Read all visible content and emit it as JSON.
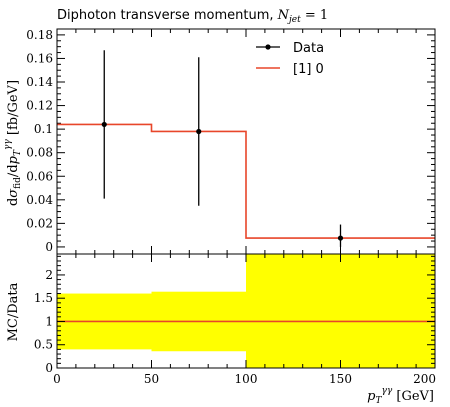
{
  "chart_data": [
    {
      "type": "line",
      "panel": "main",
      "title": "Diphoton transverse momentum, N_jet = 1",
      "title_text": "Diphoton transverse momentum, ",
      "title_var": "N",
      "title_sub": "jet",
      "title_eq": " = 1",
      "ylabel": "dσ_fid/dp_T^γγ [fb/GeV]",
      "ylabel_parts": {
        "d1": "d",
        "sigma": "σ",
        "fid": "fid",
        "slash": "/",
        "d2": "d",
        "p": "p",
        "T": "T",
        "gg": "γγ",
        "unit": " [fb/GeV]"
      },
      "xlim": [
        0,
        200
      ],
      "ylim": [
        -0.006,
        0.185
      ],
      "yticks": [
        0,
        0.02,
        0.04,
        0.06,
        0.08,
        0.1,
        0.12,
        0.14,
        0.16,
        0.18
      ],
      "ytick_labels": [
        "0",
        "0.02",
        "0.04",
        "0.06",
        "0.08",
        "0.1",
        "0.12",
        "0.14",
        "0.16",
        "0.18"
      ],
      "series": [
        {
          "name": "Data",
          "kind": "points",
          "color": "#000000",
          "points": [
            {
              "x": 25,
              "y": 0.104,
              "ylow": 0.041,
              "yhigh": 0.167
            },
            {
              "x": 75,
              "y": 0.098,
              "ylow": 0.035,
              "yhigh": 0.161
            },
            {
              "x": 150,
              "y": 0.0075,
              "ylow": 0.0,
              "yhigh": 0.019
            }
          ]
        },
        {
          "name": "[1] 0",
          "kind": "histogram",
          "color": "#e8462a",
          "bins": [
            {
              "xlow": 0,
              "xhigh": 50,
              "y": 0.104
            },
            {
              "xlow": 50,
              "xhigh": 100,
              "y": 0.098
            },
            {
              "xlow": 100,
              "xhigh": 200,
              "y": 0.0075
            }
          ]
        }
      ],
      "legend_position": "top-right"
    },
    {
      "type": "area",
      "panel": "ratio",
      "ylabel": "MC/Data",
      "xlabel": "p_T^γγ [GeV]",
      "xlabel_parts": {
        "p": "p",
        "T": "T",
        "gg": "γγ",
        "unit": " [GeV]"
      },
      "xlim": [
        0,
        200
      ],
      "ylim": [
        0,
        2.45
      ],
      "yticks": [
        0,
        0.5,
        1,
        1.5,
        2
      ],
      "ytick_labels": [
        "0",
        "0.5",
        "1",
        "1.5",
        "2"
      ],
      "xticks": [
        0,
        50,
        100,
        150,
        200
      ],
      "xtick_labels": [
        "0",
        "50",
        "100",
        "150",
        "200"
      ],
      "band_color": "#ffff00",
      "band": [
        {
          "xlow": 0,
          "xhigh": 50,
          "ylow": 0.4,
          "yhigh": 1.6
        },
        {
          "xlow": 50,
          "xhigh": 100,
          "ylow": 0.36,
          "yhigh": 1.64
        },
        {
          "xlow": 100,
          "xhigh": 200,
          "ylow": 0.0,
          "yhigh": 2.45
        }
      ],
      "ratio_line": {
        "name": "[1] 0",
        "color": "#e8462a",
        "y": 1.0
      }
    }
  ]
}
